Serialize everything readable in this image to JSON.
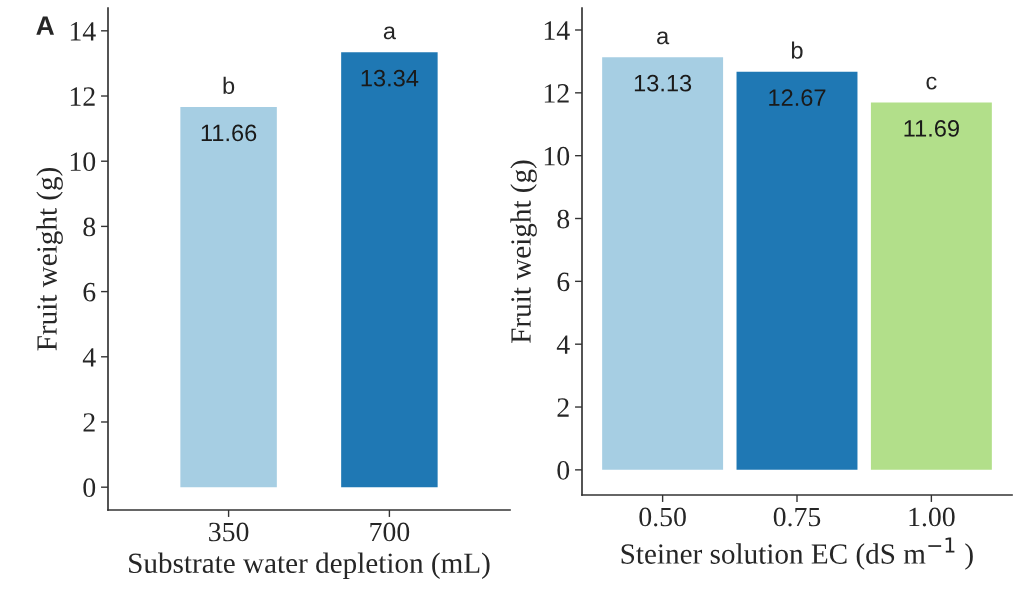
{
  "chart_data": [
    {
      "type": "bar",
      "xlabel": "Substrate water depletion (mL)",
      "ylabel": "Fruit weight (g)",
      "categories": [
        "350",
        "700"
      ],
      "values": [
        11.66,
        13.34
      ],
      "colors": [
        "#a6cee3",
        "#1f78b4"
      ],
      "ylim": [
        -0.7,
        14.7
      ],
      "yticks": [
        0,
        2,
        4,
        6,
        8,
        10,
        12,
        14
      ],
      "data_labels": true,
      "grid": false,
      "legend": false,
      "annotations": [
        "A",
        {
          "text": "b",
          "x": "350",
          "y": 11.66
        },
        {
          "text": "a",
          "x": "700",
          "y": 13.34
        }
      ]
    },
    {
      "type": "bar",
      "xlabel": "Steiner solution EC (dS m$^{−1}$ )",
      "ylabel": "Fruit weight (g)",
      "categories": [
        "0.50",
        "0.75",
        "1.00"
      ],
      "values": [
        13.13,
        12.67,
        11.69
      ],
      "colors": [
        "#a6cee3",
        "#1f78b4",
        "#b2df8a"
      ],
      "ylim": [
        -0.8,
        14.7
      ],
      "yticks": [
        0,
        2,
        4,
        6,
        8,
        10,
        12,
        14
      ],
      "data_labels": true,
      "grid": false,
      "legend": false,
      "annotations": [
        {
          "text": "a",
          "x": "0.50",
          "y": 13.13
        },
        {
          "text": "b",
          "x": "0.75",
          "y": 12.67
        },
        {
          "text": "c",
          "x": "1.00",
          "y": 11.69
        }
      ]
    }
  ]
}
